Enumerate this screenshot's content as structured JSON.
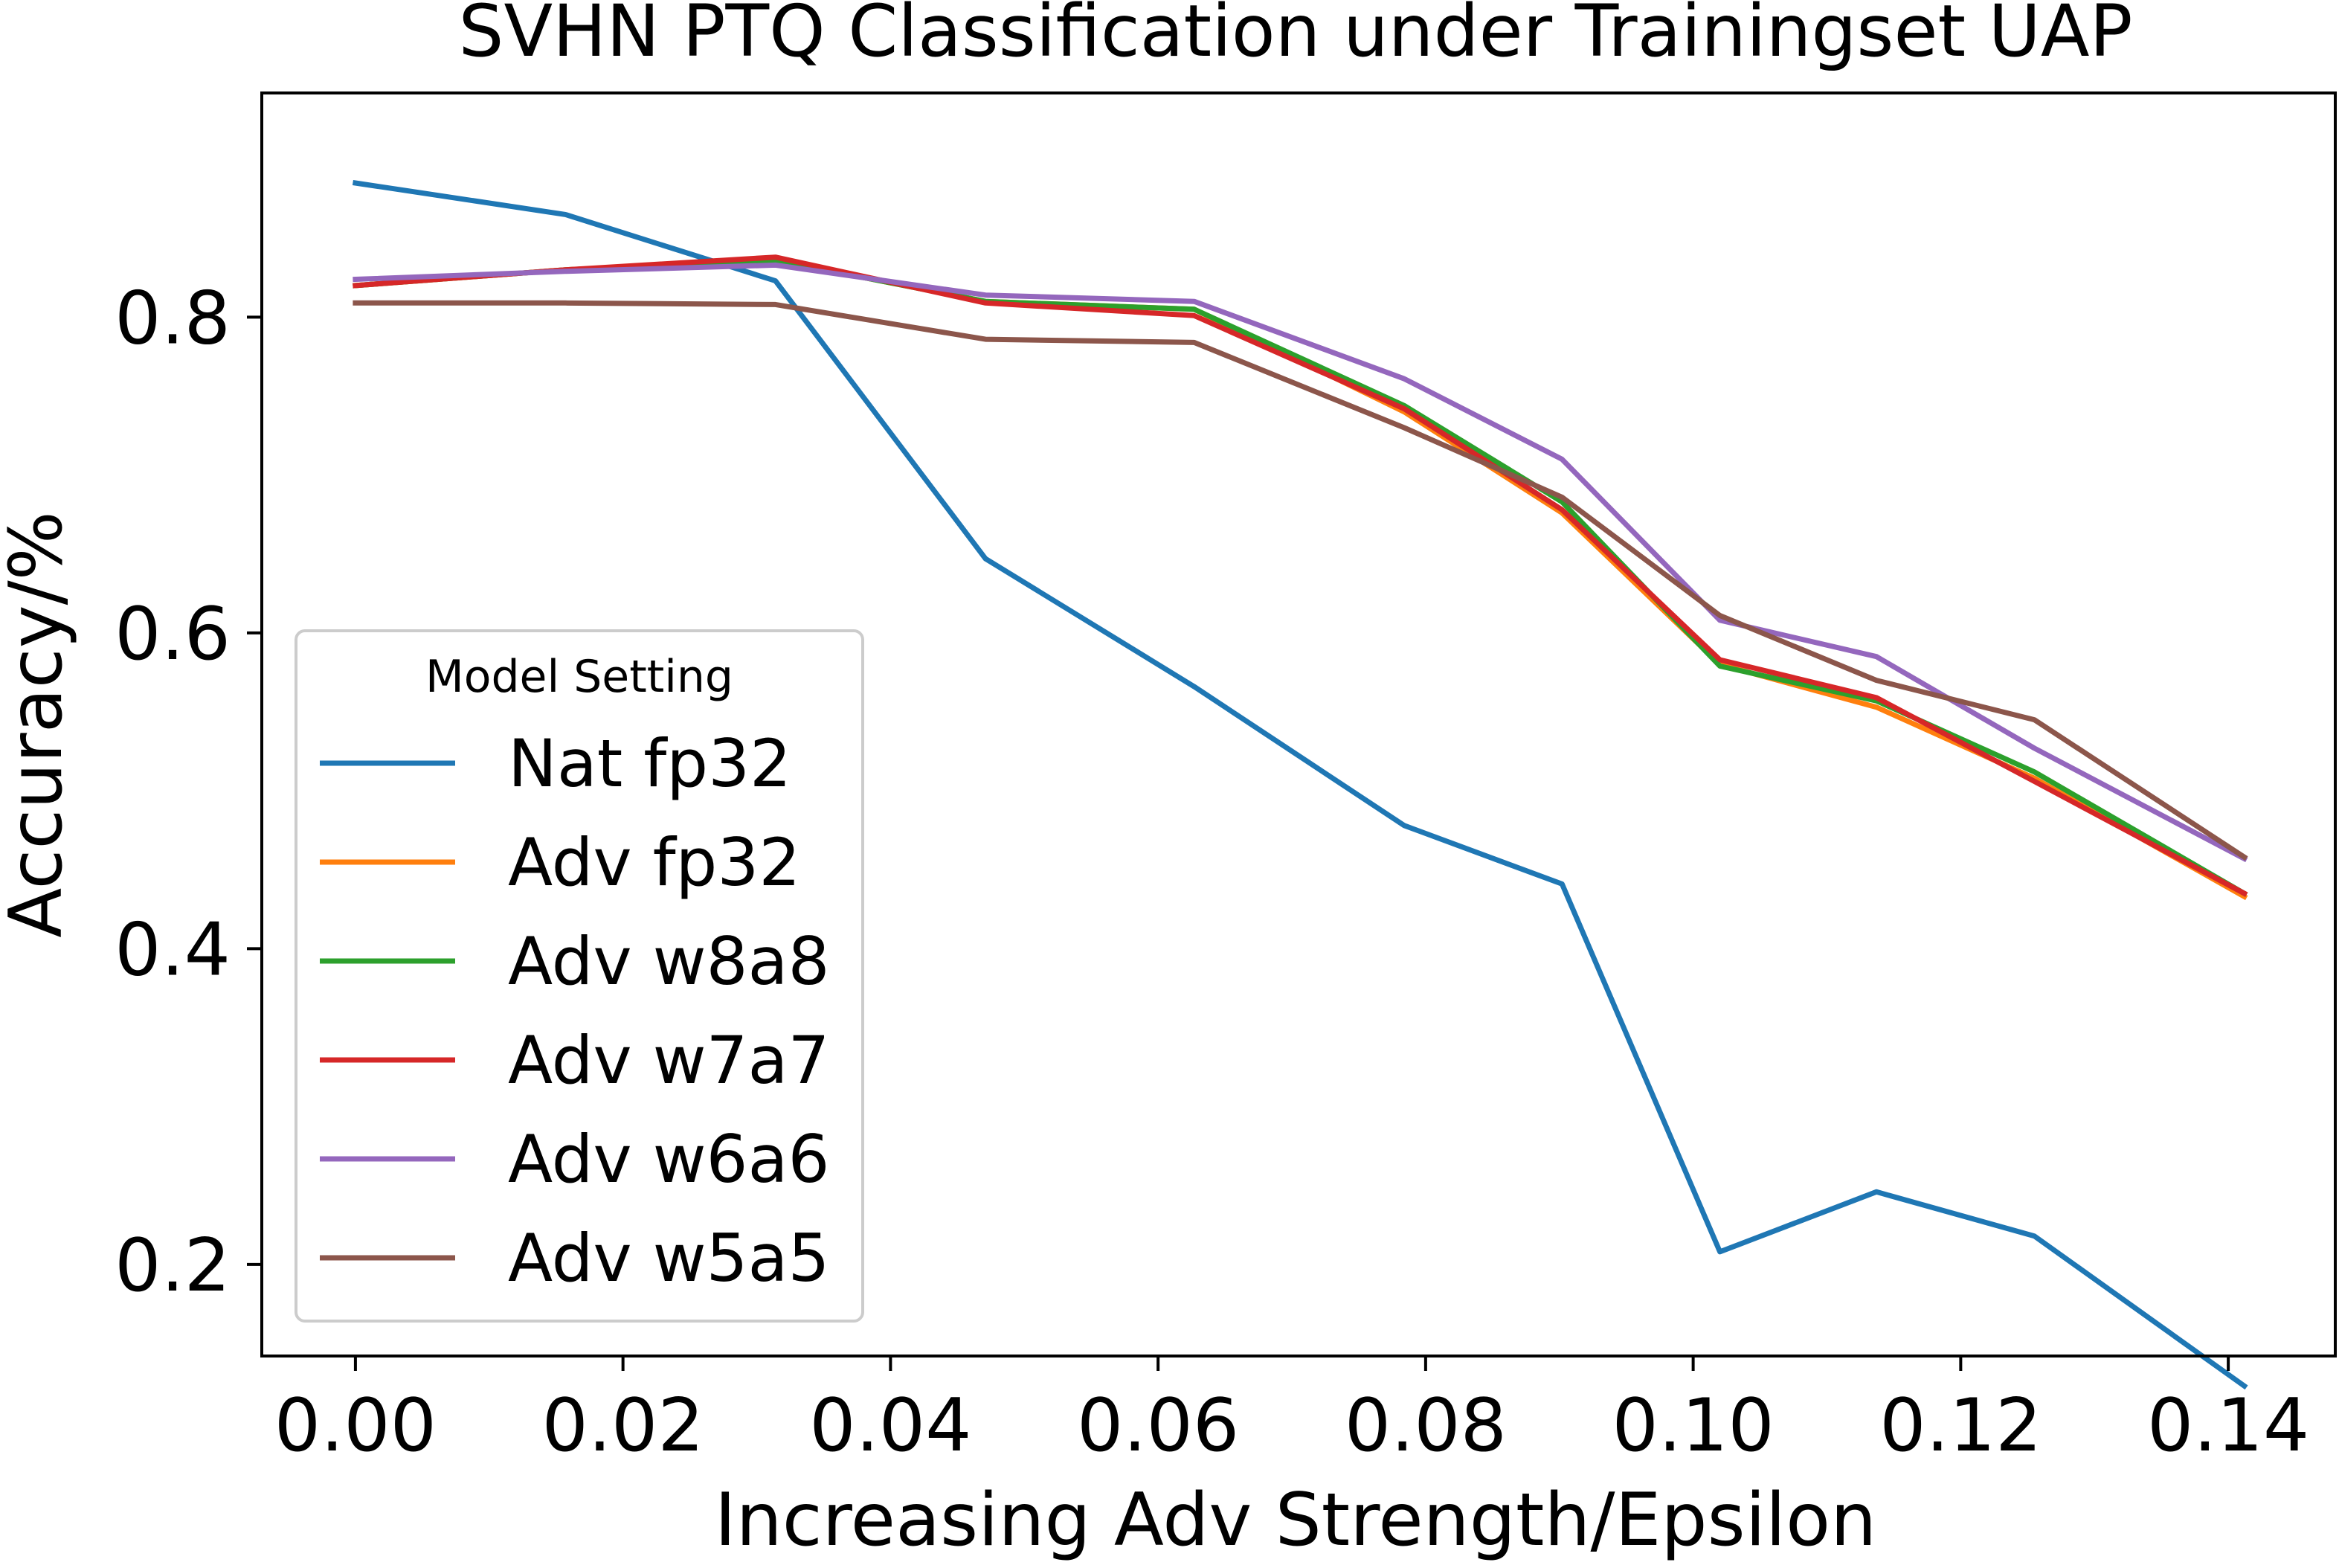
{
  "chart_data": {
    "type": "line",
    "title": "SVHN PTQ Classification under Trainingset UAP",
    "xlabel": "Increasing Adv Strength/Epsilon",
    "ylabel": "Accuracy/%",
    "xlim": [
      -0.007,
      0.148
    ],
    "ylim": [
      0.142,
      0.942
    ],
    "xticks": [
      0.0,
      0.02,
      0.04,
      0.06,
      0.08,
      0.1,
      0.12,
      0.14
    ],
    "xtick_labels": [
      "0.00",
      "0.02",
      "0.04",
      "0.06",
      "0.08",
      "0.10",
      "0.12",
      "0.14"
    ],
    "yticks": [
      0.2,
      0.4,
      0.6,
      0.8
    ],
    "ytick_labels": [
      "0.2",
      "0.4",
      "0.6",
      "0.8"
    ],
    "grid": false,
    "legend": {
      "title": "Model Setting",
      "placement": "lower-left"
    },
    "x": [
      0.0,
      0.0157,
      0.0314,
      0.0471,
      0.0627,
      0.0784,
      0.0902,
      0.102,
      0.1137,
      0.1255,
      0.1412
    ],
    "series": [
      {
        "name": "Nat fp32",
        "color": "#1f77b4",
        "values": [
          0.885,
          0.865,
          0.823,
          0.647,
          0.566,
          0.478,
          0.441,
          0.208,
          0.246,
          0.218,
          0.123
        ]
      },
      {
        "name": "Adv fp32",
        "color": "#ff7f0e",
        "values": [
          0.82,
          0.83,
          0.836,
          0.81,
          0.805,
          0.74,
          0.676,
          0.58,
          0.553,
          0.508,
          0.433
        ]
      },
      {
        "name": "Adv w8a8",
        "color": "#2ca02c",
        "values": [
          0.82,
          0.83,
          0.836,
          0.81,
          0.805,
          0.744,
          0.683,
          0.579,
          0.557,
          0.512,
          0.435
        ]
      },
      {
        "name": "Adv w7a7",
        "color": "#d62728",
        "values": [
          0.82,
          0.83,
          0.838,
          0.809,
          0.801,
          0.742,
          0.678,
          0.583,
          0.559,
          0.506,
          0.435
        ]
      },
      {
        "name": "Adv w6a6",
        "color": "#9467bd",
        "values": [
          0.824,
          0.829,
          0.833,
          0.814,
          0.81,
          0.761,
          0.71,
          0.608,
          0.585,
          0.527,
          0.457
        ]
      },
      {
        "name": "Adv w5a5",
        "color": "#8c564b",
        "values": [
          0.809,
          0.809,
          0.808,
          0.786,
          0.784,
          0.73,
          0.686,
          0.611,
          0.57,
          0.545,
          0.458
        ]
      }
    ]
  }
}
